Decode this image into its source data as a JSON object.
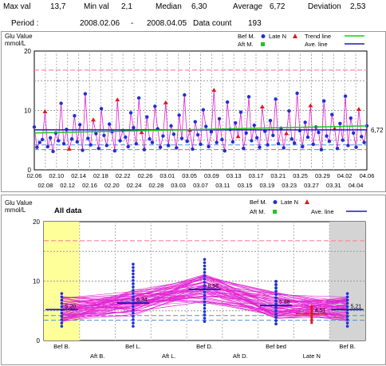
{
  "stats": {
    "max_label": "Max val",
    "max_value": "13,7",
    "min_label": "Min val",
    "min_value": "2,1",
    "median_label": "Median",
    "median_value": "6,30",
    "average_label": "Average",
    "average_value": "6,72",
    "deviation_label": "Deviation",
    "deviation_value": "2,53",
    "period_label": "Period :",
    "period_start": "2008.02.06",
    "period_sep": "-",
    "period_end": "2008.04.05",
    "count_label": "Data count",
    "count_value": "193"
  },
  "colors": {
    "bef_meal": "#1f2fd6",
    "aft_meal": "#22c422",
    "late_night": "#e01818",
    "series_line": "#e020d0",
    "trend_line": "#22c422",
    "average_line": "#1a1ab8",
    "upper_limit": "#ff8aa0",
    "lower_limit": "#4a90e0",
    "highlight_yellow": "#ffff99",
    "highlight_gray": "#d4d4d4"
  },
  "chart_data": [
    {
      "type": "line",
      "ylabel_line1": "Glu Value",
      "ylabel_line2": "mmol/L",
      "ylim": [
        0,
        20
      ],
      "y_ticks": [
        "0",
        "10",
        "20"
      ],
      "grid": true,
      "legend_placement": "top-right",
      "legend": {
        "bef": "Bef M.",
        "aft": "Aft M.",
        "late": "Late N",
        "trend": "Trend line",
        "ave": "Ave. line"
      },
      "x_ticks_upper": [
        "02.06",
        "02.10",
        "02.14",
        "02.18",
        "02.22",
        "02.26",
        "03.01",
        "03.05",
        "03.09",
        "03.13",
        "03.17",
        "03.21",
        "03.25",
        "03.29",
        "04.02",
        "04.06"
      ],
      "x_ticks_lower": [
        "02.08",
        "02.12",
        "02.16",
        "02.20",
        "02.24",
        "02.28",
        "03.03",
        "03.07",
        "03.11",
        "03.15",
        "03.19",
        "03.23",
        "03.27",
        "03.31",
        "04.04"
      ],
      "average_value": 6.72,
      "average_label": "6,72",
      "trend_start": 6.2,
      "trend_end": 7.4,
      "upper_limit": 16.8,
      "lower_limit_1": 4.2,
      "lower_limit_2": 3.4,
      "series": {
        "bef_meal": [
          7.2,
          3.8,
          4.6,
          5.1,
          9.8,
          3.9,
          5.4,
          3.1,
          6.2,
          4.9,
          11.2,
          4.4,
          6.8,
          3.5,
          5.2,
          9.1,
          4.7,
          7.6,
          3.3,
          12.8,
          5.3,
          4.2,
          8.4,
          6.1,
          3.6,
          10.3,
          5.8,
          4.1,
          7.7,
          6.4,
          3.2,
          11.8,
          4.9,
          6.6,
          5.5,
          3.9,
          9.6,
          7.1,
          4.4,
          12.1,
          6.3,
          3.4,
          8.9,
          5.2,
          4.6,
          10.7,
          6.9,
          3.8,
          5.7,
          11.3,
          4.1,
          7.4,
          6.0,
          3.7,
          9.2,
          5.3,
          12.6,
          4.8,
          6.7,
          3.5,
          8.1,
          5.9,
          4.3,
          10.1,
          7.3,
          3.9,
          6.4,
          13.4,
          4.6,
          8.6,
          5.1,
          3.2,
          11.4,
          6.8,
          4.7,
          7.9,
          5.6,
          9.7,
          3.6,
          6.2,
          12.3,
          4.9,
          7.5,
          5.4,
          3.8,
          10.6,
          6.5,
          4.2,
          8.3,
          5.8,
          11.9,
          4.4,
          7.0,
          3.7,
          6.1,
          9.9,
          5.2,
          4.5,
          12.9,
          6.6,
          3.9,
          8.0,
          5.5,
          10.8,
          4.3,
          7.2,
          6.3,
          3.4,
          11.6,
          5.7,
          4.8,
          9.3,
          6.9,
          3.6,
          7.8,
          5.0,
          12.4,
          4.1,
          8.7,
          6.2,
          3.8,
          10.2,
          5.6,
          4.6,
          7.4
        ]
      }
    },
    {
      "type": "line",
      "title": "All data",
      "ylabel_line1": "Glu Value",
      "ylabel_line2": "mmol/L",
      "ylim": [
        0,
        20
      ],
      "y_ticks": [
        "0",
        "10",
        "20"
      ],
      "grid": true,
      "legend_placement": "top-right",
      "legend": {
        "bef": "Bef M.",
        "aft": "Aft M.",
        "late": "Late N",
        "ave": "Ave. line"
      },
      "categories": [
        "Bef B.",
        "Aft B.",
        "Bef L.",
        "Aft L.",
        "Bef D.",
        "Aft D.",
        "Bef bed",
        "Late N",
        "Bef B."
      ],
      "category_avg_values": [
        5.2,
        null,
        6.3,
        null,
        8.6,
        null,
        5.9,
        4.5,
        5.2
      ],
      "category_avg_labels": [
        "5,20",
        "",
        "6,34",
        "",
        "8,56",
        "",
        "5,88",
        "4,51",
        "5,21"
      ],
      "upper_limit": 16.8,
      "lower_limit_1": 4.2,
      "lower_limit_2": 3.4
    }
  ]
}
